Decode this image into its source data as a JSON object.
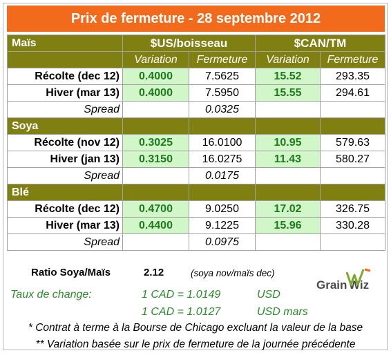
{
  "title": "Prix de fermeture - 28 septembre 2012",
  "header": {
    "us_unit": "$US/boisseau",
    "can_unit": "$CAN/TM",
    "variation": "Variation",
    "fermeture": "Fermeture"
  },
  "sections": [
    {
      "name": "Maïs",
      "rows": [
        {
          "label": "Récolte (dec 12)",
          "us_var": "0.4000",
          "us_ferm": "7.5625",
          "can_var": "15.52",
          "can_ferm": "293.35"
        },
        {
          "label": "Hiver (mar 13)",
          "us_var": "0.4000",
          "us_ferm": "7.5950",
          "can_var": "15.55",
          "can_ferm": "294.61"
        }
      ],
      "spread_label": "Spread",
      "spread_value": "0.0325"
    },
    {
      "name": "Soya",
      "rows": [
        {
          "label": "Récolte (nov 12)",
          "us_var": "0.3025",
          "us_ferm": "16.0100",
          "can_var": "10.95",
          "can_ferm": "579.63"
        },
        {
          "label": "Hiver (jan 13)",
          "us_var": "0.3150",
          "us_ferm": "16.0275",
          "can_var": "11.43",
          "can_ferm": "580.27"
        }
      ],
      "spread_label": "Spread",
      "spread_value": "0.0175"
    },
    {
      "name": "Blé",
      "rows": [
        {
          "label": "Récolte (dec 12)",
          "us_var": "0.4700",
          "us_ferm": "9.0250",
          "can_var": "17.02",
          "can_ferm": "326.75"
        },
        {
          "label": "Hiver (mar 13)",
          "us_var": "0.4400",
          "us_ferm": "9.1225",
          "can_var": "15.96",
          "can_ferm": "330.28"
        }
      ],
      "spread_label": "Spread",
      "spread_value": "0.0975"
    }
  ],
  "ratio": {
    "label": "Ratio Soya/Maïs",
    "value": "2.12",
    "note": "(soya nov/maïs dec)"
  },
  "exchange": {
    "label": "Taux de change:",
    "line1_value": "1 CAD =  1.0149",
    "line1_unit": "USD",
    "line2_value": "1 CAD =  1.0127",
    "line2_unit": "USD mars"
  },
  "logo_text": "GrainWiz",
  "footnotes": [
    "* Contrat à terme à la Bourse de Chicago excluant la valeur de la base",
    "** Variation basée sur le prix de fermeture de la journée précédente"
  ],
  "colors": {
    "title_bg": "#f26b1d",
    "section_bg": "#7f7f12",
    "variation_bg": "#d1f7c9",
    "accent_green": "#2e8b2e"
  }
}
